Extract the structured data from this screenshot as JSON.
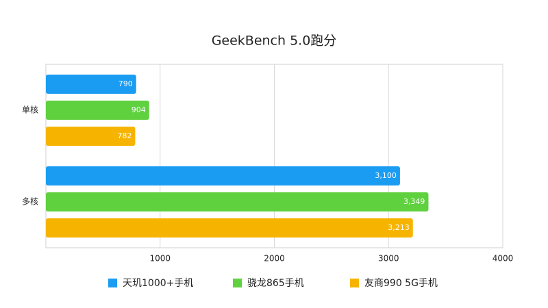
{
  "chart_data": {
    "type": "bar",
    "orientation": "horizontal",
    "title": "GeekBench 5.0跑分",
    "categories": [
      "单核",
      "多核"
    ],
    "series": [
      {
        "name": "天玑1000+手机",
        "color": "#1a9cf3",
        "values": [
          790,
          3100
        ],
        "value_labels": [
          "790",
          "3,100"
        ]
      },
      {
        "name": "骁龙865手机",
        "color": "#5fd13f",
        "values": [
          904,
          3349
        ],
        "value_labels": [
          "904",
          "3,349"
        ]
      },
      {
        "name": "友商990 5G手机",
        "color": "#f6b400",
        "values": [
          782,
          3213
        ],
        "value_labels": [
          "782",
          "3,213"
        ]
      }
    ],
    "xlim": [
      0,
      4000
    ],
    "xticks": [
      1000,
      2000,
      3000,
      4000
    ],
    "grid": true,
    "legend": "bottom"
  }
}
